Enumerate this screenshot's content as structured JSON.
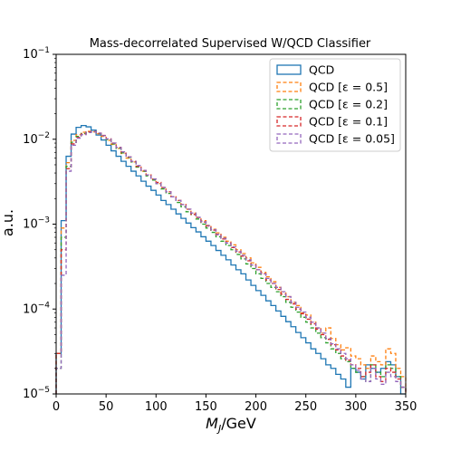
{
  "chart_data": {
    "type": "line",
    "title": "Mass-decorrelated Supervised W/QCD Classifier",
    "xlabel": "M_J/GeV",
    "ylabel": "a.u.",
    "xlim": [
      0,
      350
    ],
    "ylim": [
      1e-05,
      0.1
    ],
    "yscale": "log",
    "grid": false,
    "legend_position": "top-right",
    "x_ticks": [
      "0",
      "50",
      "100",
      "150",
      "200",
      "250",
      "300",
      "350"
    ],
    "y_ticks": [
      {
        "base": "10",
        "exp": "−5"
      },
      {
        "base": "10",
        "exp": "−4"
      },
      {
        "base": "10",
        "exp": "−3"
      },
      {
        "base": "10",
        "exp": "−2"
      },
      {
        "base": "10",
        "exp": "−1"
      }
    ],
    "bin_edges": [
      0,
      5,
      10,
      15,
      20,
      25,
      30,
      35,
      40,
      45,
      50,
      55,
      60,
      65,
      70,
      75,
      80,
      85,
      90,
      95,
      100,
      105,
      110,
      115,
      120,
      125,
      130,
      135,
      140,
      145,
      150,
      155,
      160,
      165,
      170,
      175,
      180,
      185,
      190,
      195,
      200,
      205,
      210,
      215,
      220,
      225,
      230,
      235,
      240,
      245,
      250,
      255,
      260,
      265,
      270,
      275,
      280,
      285,
      290,
      295,
      300,
      305,
      310,
      315,
      320,
      325,
      330,
      335,
      340,
      345,
      350
    ],
    "series": [
      {
        "name": "QCD",
        "color": "#1f77b4",
        "style": "solid",
        "values": [
          3e-05,
          0.0011,
          0.0063,
          0.0115,
          0.0138,
          0.0145,
          0.014,
          0.0128,
          0.0112,
          0.0098,
          0.0085,
          0.0073,
          0.0063,
          0.0055,
          0.0048,
          0.0042,
          0.0037,
          0.0032,
          0.0028,
          0.0025,
          0.0022,
          0.0019,
          0.0017,
          0.0015,
          0.00132,
          0.00117,
          0.00103,
          0.00091,
          0.00081,
          0.00071,
          0.00063,
          0.00056,
          0.00049,
          0.00043,
          0.00038,
          0.00033,
          0.00029,
          0.00026,
          0.00022,
          0.00019,
          0.000165,
          0.000145,
          0.000125,
          0.00011,
          9.5e-05,
          8.2e-05,
          7.1e-05,
          6.2e-05,
          5.3e-05,
          4.6e-05,
          4e-05,
          3.4e-05,
          3e-05,
          2.6e-05,
          2.2e-05,
          2e-05,
          1.7e-05,
          1.5e-05,
          1.2e-05,
          2e-05,
          1.8e-05,
          1.5e-05,
          2.2e-05,
          2e-05,
          1.8e-05,
          2e-05,
          2.4e-05,
          2.2e-05,
          1.6e-05,
          1e-05
        ]
      },
      {
        "name": "QCD [ε = 0.5]",
        "color": "#ff7f0e",
        "style": "dashed",
        "values": [
          3e-05,
          0.0009,
          0.0053,
          0.0097,
          0.0113,
          0.0121,
          0.0124,
          0.0122,
          0.0116,
          0.0108,
          0.0097,
          0.0087,
          0.0078,
          0.0068,
          0.006,
          0.0054,
          0.0047,
          0.0042,
          0.0038,
          0.0034,
          0.003,
          0.0027,
          0.0024,
          0.0021,
          0.0019,
          0.0017,
          0.0015,
          0.00135,
          0.0012,
          0.0011,
          0.00097,
          0.00087,
          0.00079,
          0.0007,
          0.00063,
          0.00057,
          0.0005,
          0.00045,
          0.0004,
          0.00035,
          0.00031,
          0.00027,
          0.00024,
          0.00021,
          0.00018,
          0.00016,
          0.00014,
          0.00012,
          0.00011,
          9e-05,
          8.5e-05,
          7e-05,
          6e-05,
          5.2e-05,
          6e-05,
          4.5e-05,
          3.8e-05,
          3.3e-05,
          3.5e-05,
          2.8e-05,
          2.6e-05,
          2.2e-05,
          2e-05,
          2.8e-05,
          2.4e-05,
          2.2e-05,
          3.4e-05,
          3e-05,
          2e-05,
          1.6e-05
        ]
      },
      {
        "name": "QCD [ε = 0.2]",
        "color": "#2ca02c",
        "style": "dashed",
        "values": [
          2e-05,
          0.0007,
          0.0048,
          0.0092,
          0.0108,
          0.0117,
          0.0122,
          0.0122,
          0.0117,
          0.011,
          0.0099,
          0.0088,
          0.0078,
          0.0069,
          0.0061,
          0.0054,
          0.0047,
          0.0042,
          0.0037,
          0.0033,
          0.003,
          0.0026,
          0.0023,
          0.0021,
          0.0018,
          0.0016,
          0.0014,
          0.0013,
          0.00115,
          0.001,
          0.0009,
          0.0008,
          0.00071,
          0.00063,
          0.00056,
          0.0005,
          0.00044,
          0.00039,
          0.00034,
          0.0003,
          0.00026,
          0.00023,
          0.0002,
          0.00018,
          0.00016,
          0.00014,
          0.00012,
          0.000105,
          9.2e-05,
          8e-05,
          7e-05,
          6e-05,
          5.2e-05,
          4.6e-05,
          4e-05,
          3.4e-05,
          3e-05,
          2.6e-05,
          2.4e-05,
          2e-05,
          1.8e-05,
          1.6e-05,
          1.4e-05,
          2.2e-05,
          1.8e-05,
          1.6e-05,
          2.2e-05,
          2e-05,
          1.6e-05,
          1.2e-05
        ]
      },
      {
        "name": "QCD [ε = 0.1]",
        "color": "#d62728",
        "style": "dashed",
        "values": [
          3e-05,
          0.0005,
          0.0045,
          0.0088,
          0.0105,
          0.0115,
          0.0122,
          0.0123,
          0.0118,
          0.0111,
          0.0101,
          0.009,
          0.008,
          0.0071,
          0.0062,
          0.0055,
          0.0048,
          0.0043,
          0.0038,
          0.0034,
          0.0031,
          0.0027,
          0.0024,
          0.0021,
          0.0019,
          0.0017,
          0.0015,
          0.0013,
          0.0012,
          0.00106,
          0.00095,
          0.00085,
          0.00075,
          0.00067,
          0.0006,
          0.00053,
          0.00047,
          0.00042,
          0.00037,
          0.00033,
          0.00029,
          0.00026,
          0.00022,
          0.0002,
          0.00017,
          0.00015,
          0.00013,
          0.000115,
          0.0001,
          8.8e-05,
          7.6e-05,
          6.7e-05,
          5.8e-05,
          5e-05,
          4.4e-05,
          3.8e-05,
          3.3e-05,
          2.8e-05,
          2.5e-05,
          2.2e-05,
          2e-05,
          1.6e-05,
          1.8e-05,
          2.2e-05,
          1.6e-05,
          1.4e-05,
          2e-05,
          1.8e-05,
          1.5e-05,
          1.2e-05
        ]
      },
      {
        "name": "QCD [ε = 0.05]",
        "color": "#9467bd",
        "style": "dashed",
        "values": [
          2e-05,
          0.00025,
          0.0042,
          0.0085,
          0.0103,
          0.0113,
          0.012,
          0.0122,
          0.0118,
          0.011,
          0.0101,
          0.009,
          0.008,
          0.0071,
          0.0062,
          0.0055,
          0.0049,
          0.0043,
          0.0038,
          0.0034,
          0.003,
          0.0027,
          0.0024,
          0.0021,
          0.0019,
          0.0017,
          0.0015,
          0.00135,
          0.0012,
          0.00107,
          0.00096,
          0.00086,
          0.00076,
          0.00068,
          0.0006,
          0.00054,
          0.00048,
          0.00043,
          0.00038,
          0.00033,
          0.00029,
          0.00026,
          0.00023,
          0.0002,
          0.00018,
          0.00016,
          0.00014,
          0.00012,
          0.000105,
          9.2e-05,
          8e-05,
          7e-05,
          6e-05,
          5.2e-05,
          4.5e-05,
          3.9e-05,
          3.4e-05,
          3e-05,
          2.6e-05,
          2.2e-05,
          1.9e-05,
          1.5e-05,
          1.4e-05,
          2e-05,
          1.5e-05,
          1.3e-05,
          1.8e-05,
          1.6e-05,
          1.4e-05,
          1.2e-05
        ]
      }
    ]
  }
}
